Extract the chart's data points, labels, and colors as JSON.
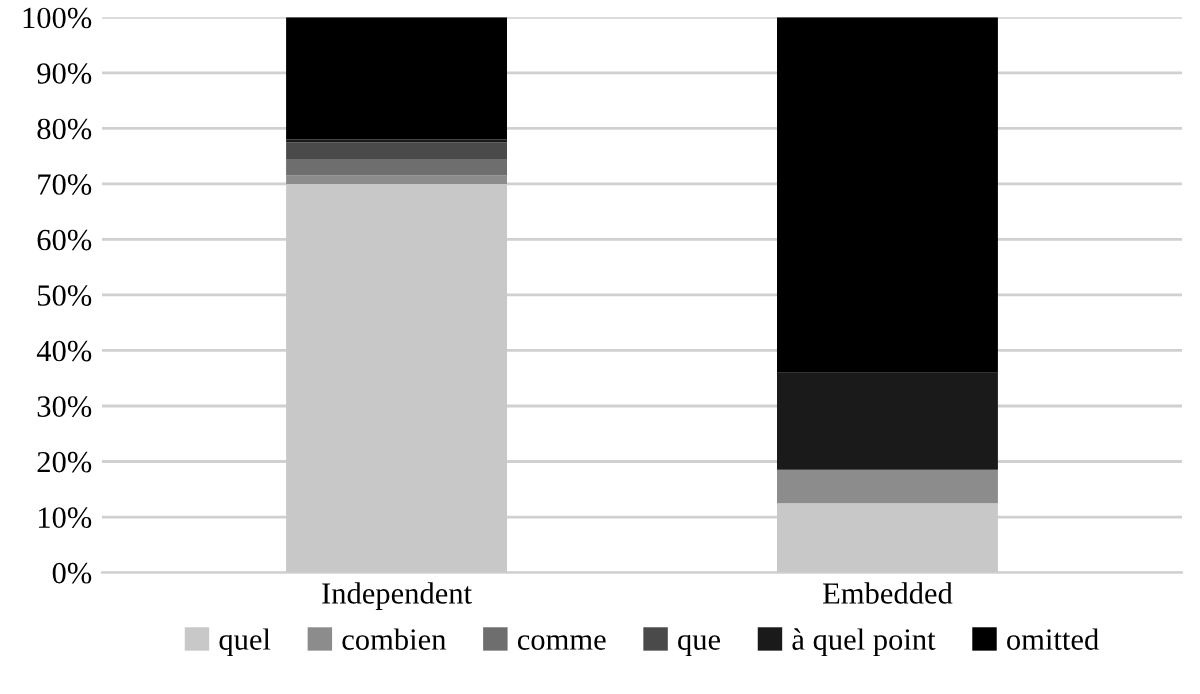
{
  "chart_data": {
    "type": "bar",
    "stacked": true,
    "categories": [
      "Independent",
      "Embedded"
    ],
    "series": [
      {
        "name": "quel",
        "color": "#c8c8c8",
        "values": [
          70,
          12.5
        ]
      },
      {
        "name": "combien",
        "color": "#8c8c8c",
        "values": [
          1.5,
          6
        ]
      },
      {
        "name": "comme",
        "color": "#6e6e6e",
        "values": [
          3,
          0
        ]
      },
      {
        "name": "que",
        "color": "#4a4a4a",
        "values": [
          3,
          0
        ]
      },
      {
        "name": "à quel point",
        "color": "#1a1a1a",
        "values": [
          0.5,
          17.5
        ]
      },
      {
        "name": "omitted",
        "color": "#000000",
        "values": [
          22,
          64
        ]
      }
    ],
    "ylim": [
      0,
      100
    ],
    "yticks": [
      {
        "value": 0,
        "label": "0%"
      },
      {
        "value": 10,
        "label": "10%"
      },
      {
        "value": 20,
        "label": "20%"
      },
      {
        "value": 30,
        "label": "30%"
      },
      {
        "value": 40,
        "label": "40%"
      },
      {
        "value": 50,
        "label": "50%"
      },
      {
        "value": 60,
        "label": "60%"
      },
      {
        "value": 70,
        "label": "70%"
      },
      {
        "value": 80,
        "label": "80%"
      },
      {
        "value": 90,
        "label": "90%"
      },
      {
        "value": 100,
        "label": "100%"
      }
    ],
    "grid": "y",
    "legend": "bottom"
  }
}
